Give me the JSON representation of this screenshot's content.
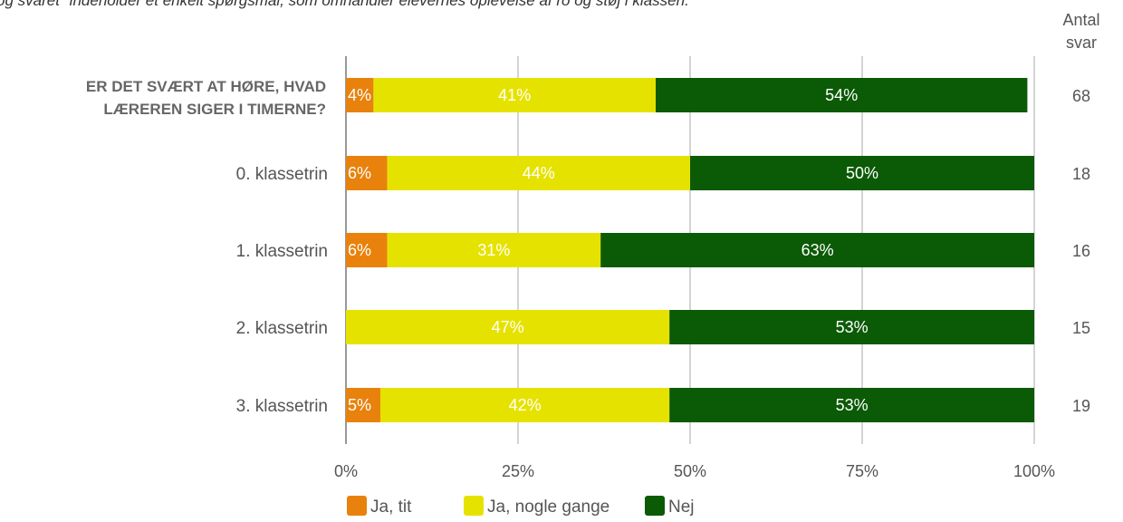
{
  "caption": "og svaret \"indeholder et enkelt spørgsmål, som omhandler elevernes oplevelse af ro og støj i klassen.",
  "count_header": [
    "Antal",
    "svar"
  ],
  "chart_data": {
    "type": "bar",
    "orientation": "horizontal",
    "stacked": true,
    "percent": true,
    "xlim": [
      0,
      100
    ],
    "xticks": [
      "0%",
      "25%",
      "50%",
      "75%",
      "100%"
    ],
    "grid": true,
    "legend_position": "bottom",
    "categories": [
      "ER DET SVÆRT AT HØRE, HVAD LÆREREN SIGER I TIMERNE?",
      "0. klassetrin",
      "1. klassetrin",
      "2. klassetrin",
      "3. klassetrin"
    ],
    "series": [
      {
        "name": "Ja, tit",
        "color": "#e8820c",
        "values": [
          4,
          6,
          6,
          0,
          5
        ]
      },
      {
        "name": "Ja, nogle gange",
        "color": "#e6e200",
        "values": [
          41,
          44,
          31,
          47,
          42
        ]
      },
      {
        "name": "Nej",
        "color": "#0b5a06",
        "values": [
          54,
          50,
          63,
          53,
          53
        ]
      }
    ],
    "counts": [
      68,
      18,
      16,
      15,
      19
    ]
  }
}
